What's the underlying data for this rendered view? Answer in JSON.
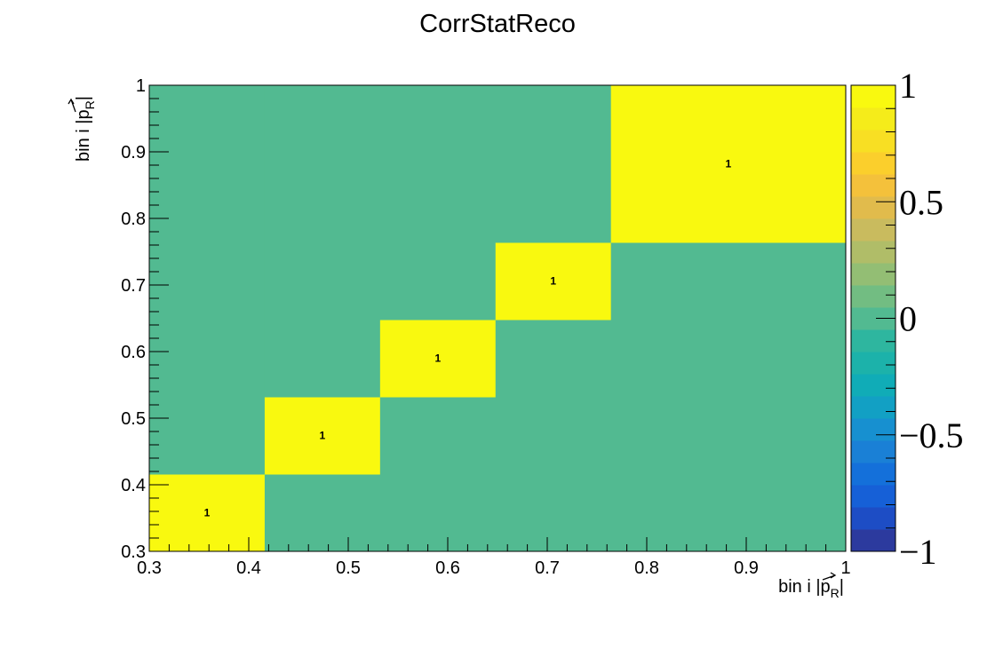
{
  "chart_data": {
    "type": "heatmap",
    "title": "CorrStatReco",
    "xlabel": "bin i |p⃗_R|",
    "ylabel": "bin i |p⃗_R|",
    "xlabel_text": "bin i |p",
    "xlabel_sub": "R",
    "xlabel_close": "|",
    "ylabel_text": "bin i |p",
    "ylabel_sub": "R",
    "ylabel_close": "|",
    "bin_edges": [
      0.3,
      0.416,
      0.532,
      0.648,
      0.764,
      1.0
    ],
    "values": [
      [
        1,
        0,
        0,
        0,
        0
      ],
      [
        0,
        1,
        0,
        0,
        0
      ],
      [
        0,
        0,
        1,
        0,
        0
      ],
      [
        0,
        0,
        0,
        1,
        0
      ],
      [
        0,
        0,
        0,
        0,
        1
      ]
    ],
    "cell_labels": [
      "1",
      "1",
      "1",
      "1",
      "1"
    ],
    "xlim": [
      0.3,
      1.0
    ],
    "ylim": [
      0.3,
      1.0
    ],
    "zlim": [
      -1,
      1
    ],
    "x_ticks": [
      "0.3",
      "0.4",
      "0.5",
      "0.6",
      "0.7",
      "0.8",
      "0.9",
      "1"
    ],
    "y_ticks": [
      "0.3",
      "0.4",
      "0.5",
      "0.6",
      "0.7",
      "0.8",
      "0.9",
      "1"
    ],
    "z_ticks": [
      "−1",
      "−0.5",
      "0",
      "0.5",
      "1"
    ],
    "z_tick_values": [
      -1,
      -0.5,
      0,
      0.5,
      1
    ],
    "colors": {
      "zero": "#52ba91",
      "one": "#f9f90f",
      "palette": [
        "#2c3a9e",
        "#1d4dc5",
        "#1660d7",
        "#1470da",
        "#1a80d6",
        "#1790d0",
        "#12a0c4",
        "#10acb7",
        "#1cb2aa",
        "#2eb69f",
        "#52ba91",
        "#72bd82",
        "#93be74",
        "#b0bd68",
        "#c9bb5e",
        "#e1bb4c",
        "#f4c13b",
        "#fbcf2c",
        "#f8df23",
        "#f5ec1a",
        "#f9f90f"
      ]
    },
    "grid": false,
    "legend": "colorbar-right"
  }
}
